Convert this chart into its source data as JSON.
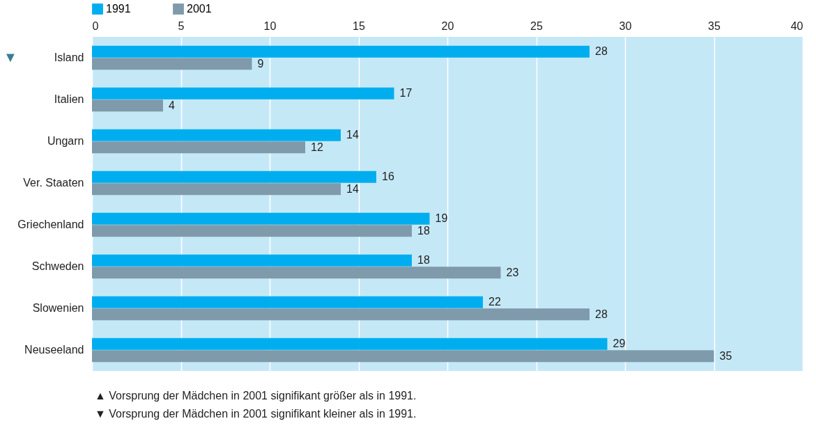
{
  "chart_data": {
    "type": "bar",
    "orientation": "horizontal",
    "categories": [
      "Island",
      "Italien",
      "Ungarn",
      "Ver. Staaten",
      "Griechenland",
      "Schweden",
      "Slowenien",
      "Neuseeland"
    ],
    "series": [
      {
        "name": "1991",
        "color": "#00aeef",
        "values": [
          28,
          17,
          14,
          16,
          19,
          18,
          22,
          29
        ]
      },
      {
        "name": "2001",
        "color": "#7f9aab",
        "values": [
          9,
          4,
          12,
          14,
          18,
          23,
          28,
          35
        ]
      }
    ],
    "xlim": [
      0,
      40
    ],
    "xticks": [
      0,
      5,
      10,
      15,
      20,
      25,
      30,
      35,
      40
    ],
    "grid": "x",
    "legend": "top left",
    "data_labels": true,
    "annotations": [
      "▼",
      "▲ Vorsprung der Mädchen in 2001 signifikant größer als in 1991.",
      "▼ Vorsprung der Mädchen in 2001 signifikant kleiner als in 1991."
    ]
  }
}
